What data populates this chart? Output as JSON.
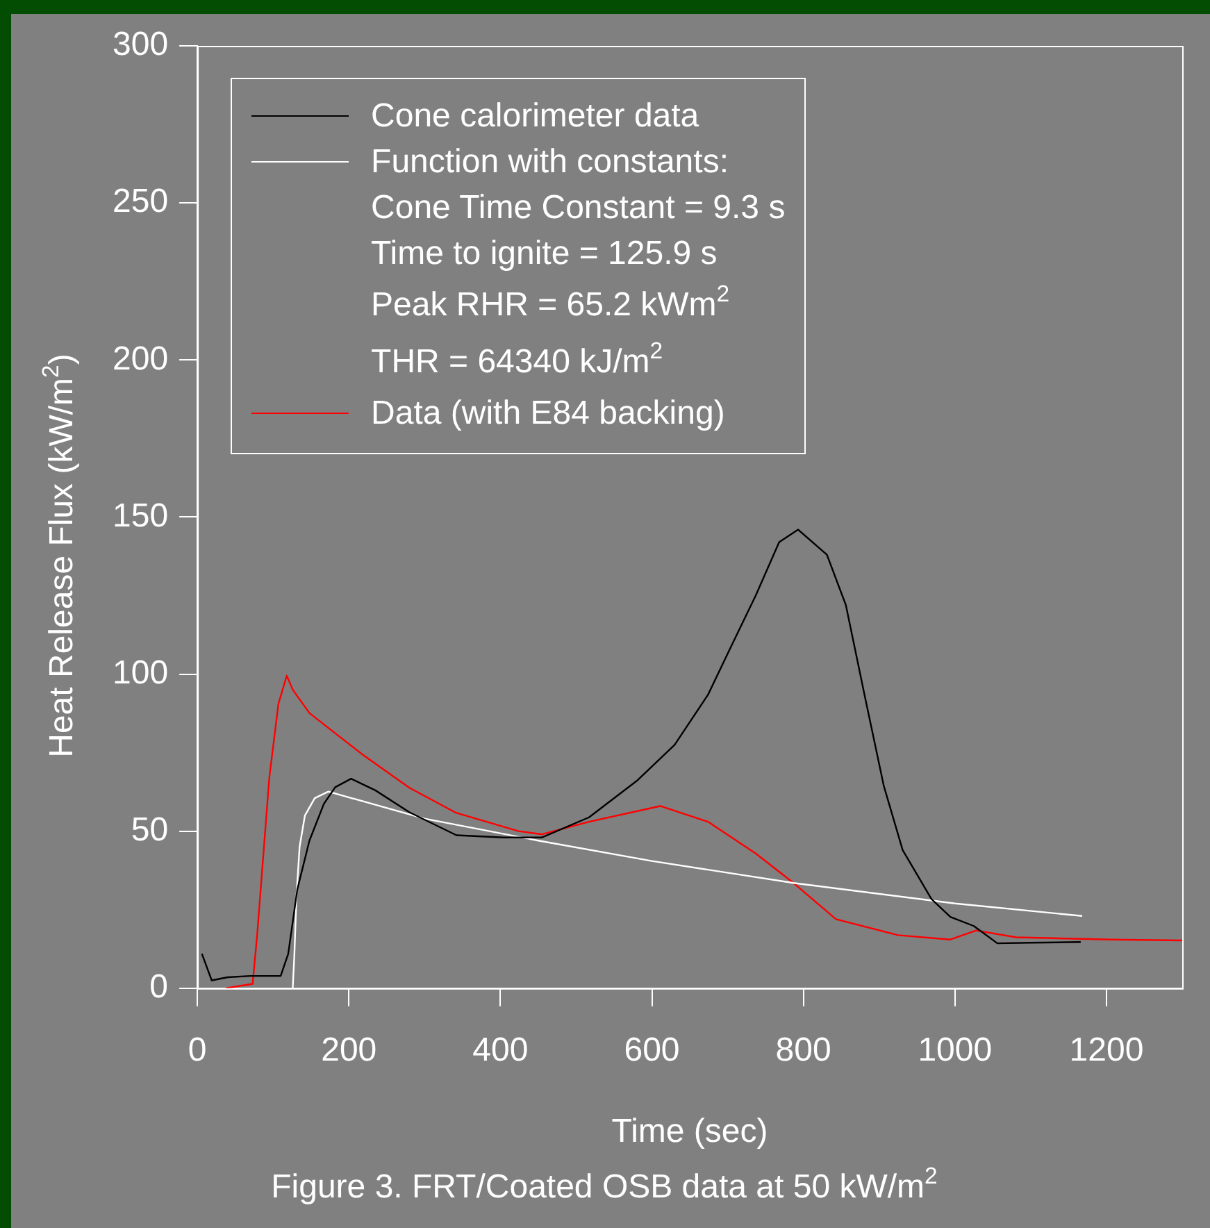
{
  "chart_data": {
    "type": "line",
    "title": "Figure 3. FRT/Coated OSB data at 50 kW/m$^{2}$",
    "xlabel": "Time (sec)",
    "ylabel": "Heat Release Flux (kW/m$^{2}$)",
    "xlim": [
      0,
      1300
    ],
    "xticks": [
      0,
      200,
      400,
      600,
      800,
      1000,
      1200
    ],
    "ylim": [
      0,
      300
    ],
    "yticks": [
      0,
      50,
      100,
      150,
      200,
      250,
      300
    ],
    "grid": false,
    "legend": "top left",
    "marker": "none",
    "line_style": "solid",
    "annotations": [
      "Cone Time Constant = 9.3 s",
      "Time to ignite = 125.9 s",
      "Peak RHR = 65.2 kWm$^{2}$",
      "THR = 64340 kJ/m$^{2}$"
    ],
    "series": [
      {
        "name": "Cone calorimeter data",
        "color": "#000000",
        "x": [
          6,
          19,
          40,
          70,
          110,
          120,
          132,
          148,
          167,
          182,
          203,
          235,
          280,
          342,
          404,
          455,
          517,
          580,
          630,
          674,
          705,
          737,
          768,
          793,
          831,
          856,
          881,
          906,
          931,
          969,
          994,
          1025,
          1056,
          1100,
          1166
        ],
        "values": [
          11,
          2.5,
          3.5,
          3.9,
          3.9,
          11,
          31.5,
          47,
          58.7,
          64,
          66.7,
          63,
          56,
          48.7,
          48,
          48,
          54.4,
          66,
          77.5,
          93.4,
          109,
          125,
          142,
          146,
          138,
          122,
          93,
          64.5,
          44,
          28.4,
          22.7,
          19.8,
          14.3,
          14.5,
          14.7
        ]
      },
      {
        "name": "Function with constants:",
        "color": "#ffffff",
        "x": [
          125.9,
          128,
          131,
          135,
          142,
          155,
          173,
          300,
          450,
          600,
          787,
          1000,
          1168
        ],
        "values": [
          0,
          10,
          30,
          45,
          55,
          60.5,
          62.6,
          54,
          47,
          40.5,
          33.5,
          27,
          23
        ]
      },
      {
        "name": "Data (with E84 backing)",
        "color": "#ff0000",
        "x": [
          38,
          73,
          79,
          95,
          107,
          118,
          126,
          148,
          186,
          217,
          280,
          342,
          424,
          455,
          517,
          611,
          674,
          737,
          787,
          843,
          925,
          994,
          1028,
          1081,
          1207,
          1300
        ],
        "values": [
          0,
          1.4,
          17,
          67,
          90.5,
          99.5,
          95,
          87.6,
          80.4,
          74.6,
          63.8,
          55.8,
          50,
          49,
          53,
          58,
          53,
          42.9,
          33.5,
          22,
          16.9,
          15.5,
          18.4,
          16.2,
          15.5,
          15.2
        ]
      }
    ]
  }
}
